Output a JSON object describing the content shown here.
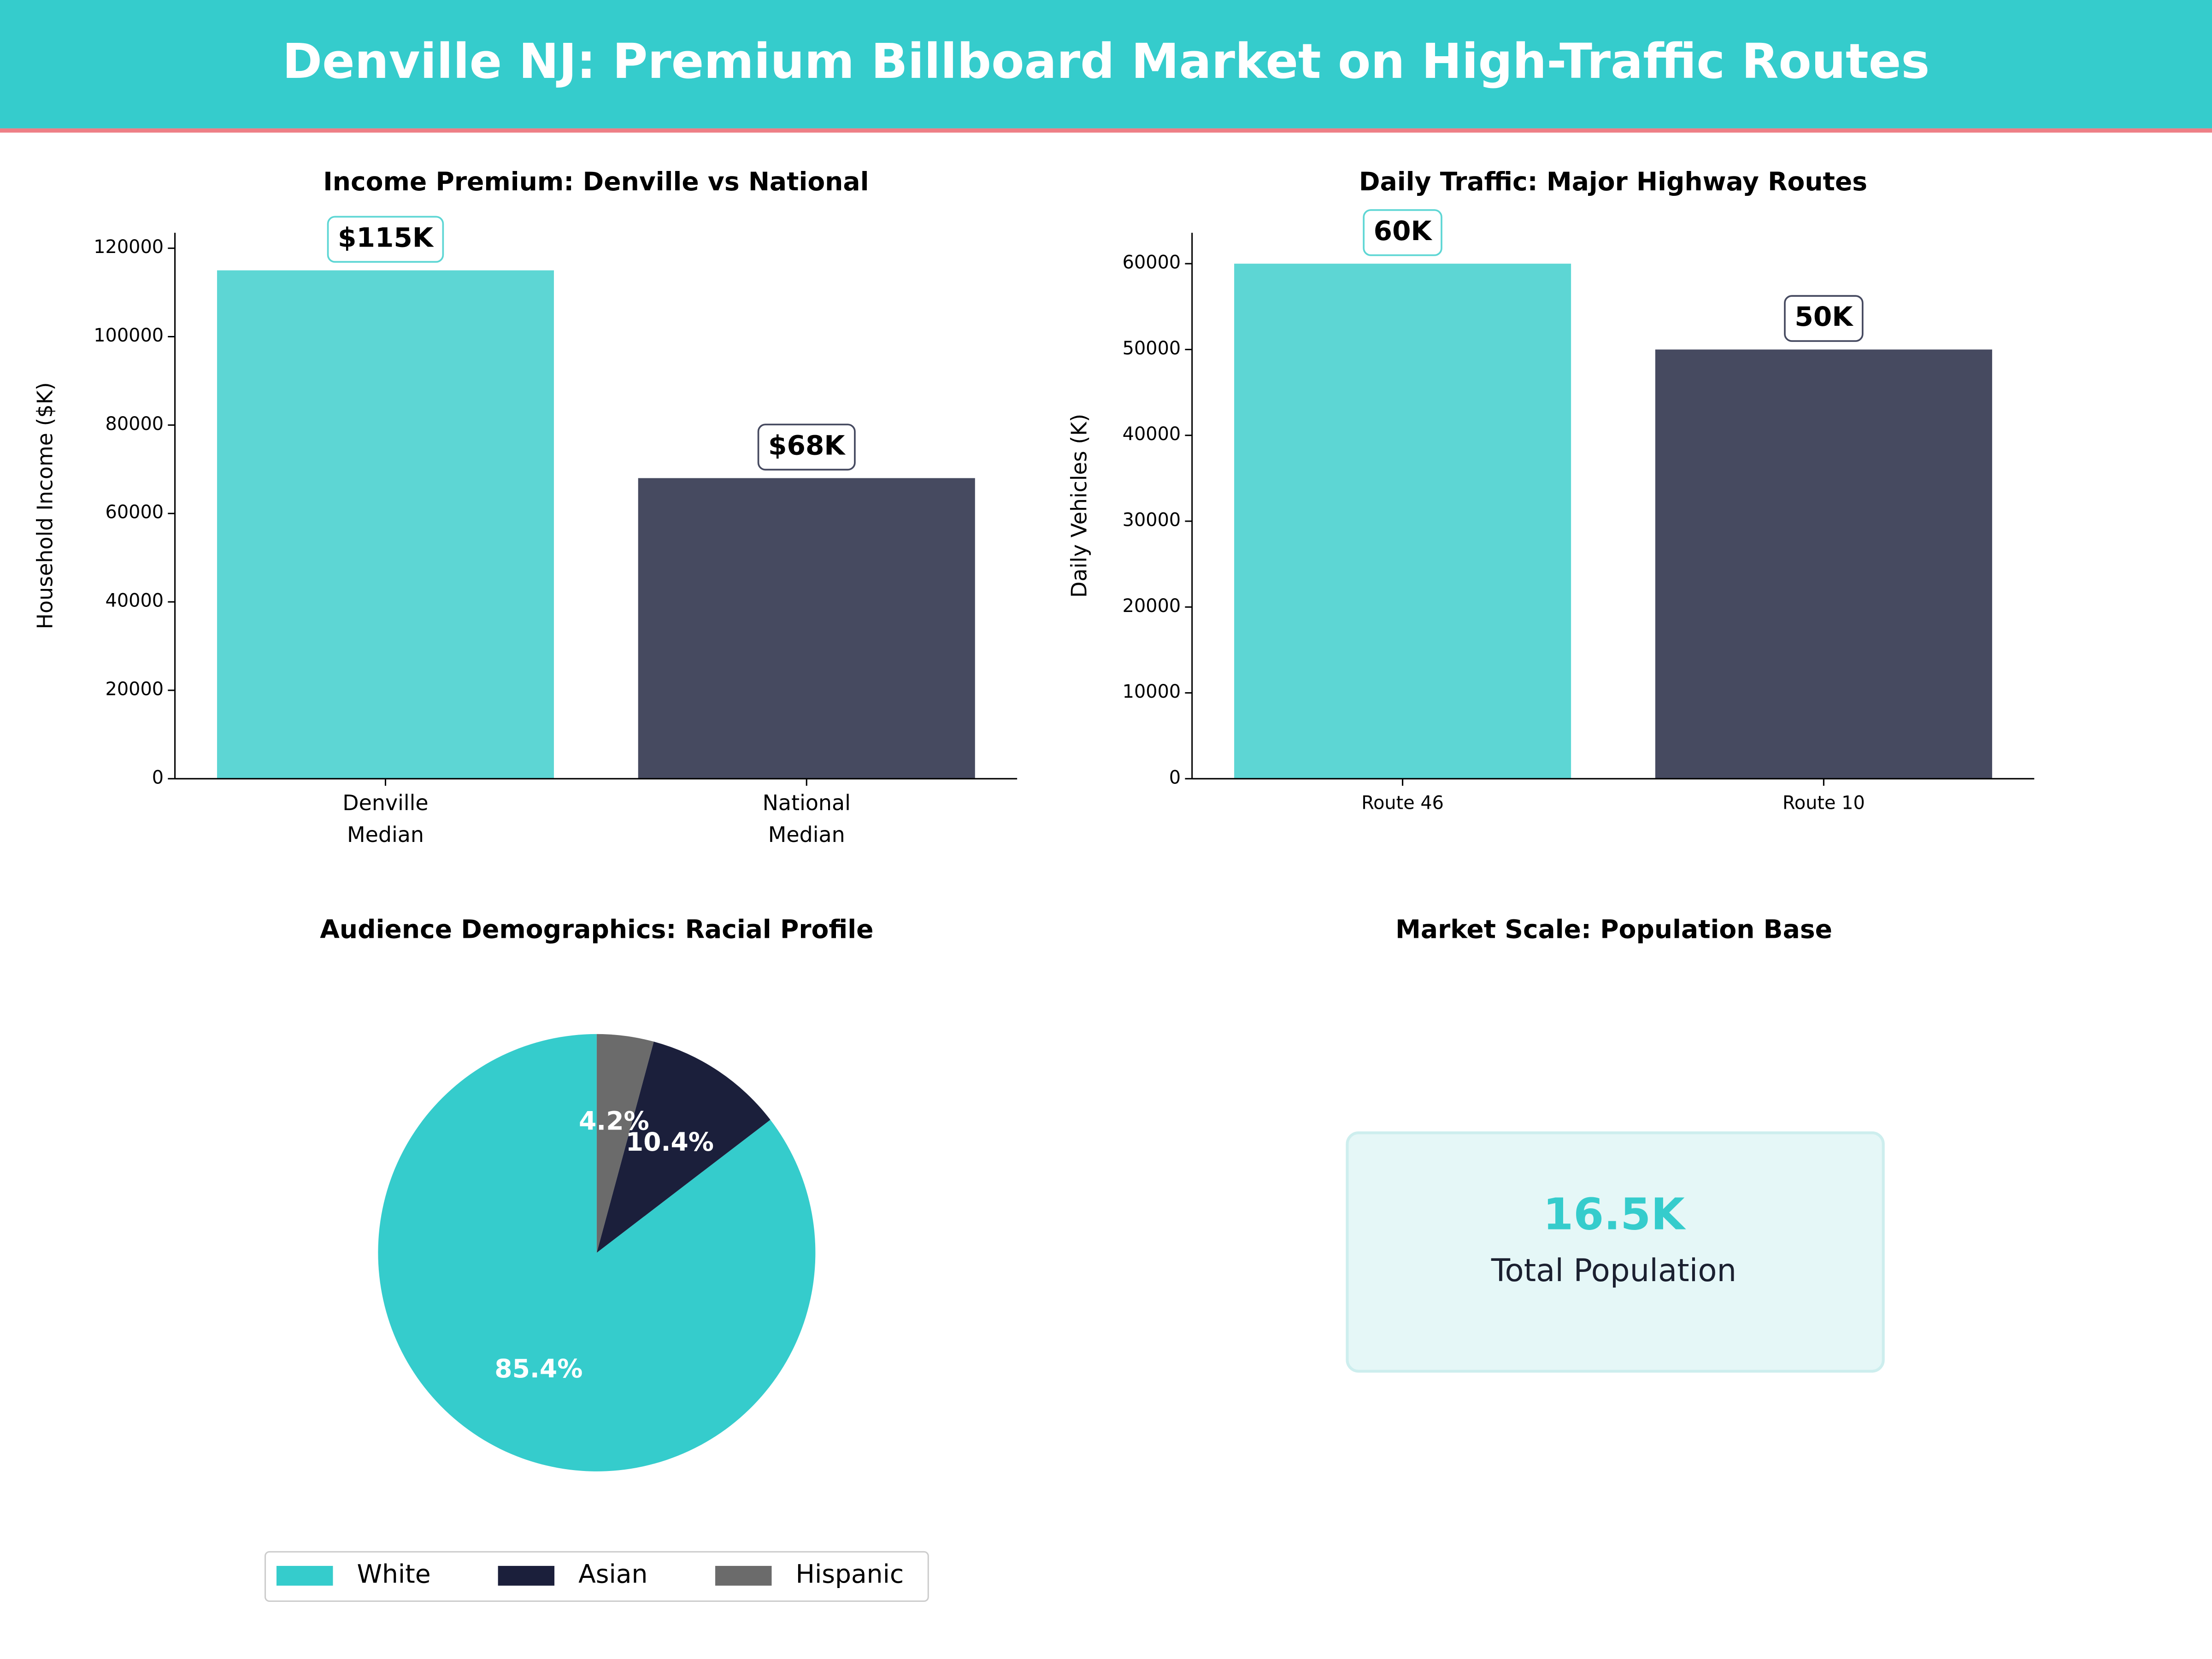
{
  "title": "Denville NJ: Premium Billboard Market on High-Traffic Routes",
  "chart_data": [
    {
      "type": "bar",
      "title": "Income Premium: Denville vs National",
      "ylabel": "Household Income ($K)",
      "categories": [
        "Denville\nMedian",
        "National\nMedian"
      ],
      "values": [
        115000,
        68000
      ],
      "value_labels": [
        "$115K",
        "$68K"
      ],
      "colors": [
        "#5dd6d4",
        "#464a60"
      ],
      "ylim": [
        0,
        123500
      ],
      "yticks": [
        0,
        20000,
        40000,
        60000,
        80000,
        100000,
        120000
      ]
    },
    {
      "type": "bar",
      "title": "Daily Traffic: Major Highway Routes",
      "ylabel": "Daily Vehicles (K)",
      "categories": [
        "Route 46",
        "Route 10"
      ],
      "values": [
        60000,
        50000
      ],
      "value_labels": [
        "60K",
        "50K"
      ],
      "colors": [
        "#5dd6d4",
        "#464a60"
      ],
      "ylim": [
        0,
        63600
      ],
      "yticks": [
        0,
        10000,
        20000,
        30000,
        40000,
        50000,
        60000
      ]
    },
    {
      "type": "pie",
      "title": "Audience Demographics: Racial Profile",
      "categories": [
        "White",
        "Asian",
        "Hispanic"
      ],
      "values": [
        85.4,
        10.4,
        4.2
      ],
      "value_labels": [
        "85.4%",
        "10.4%",
        "4.2%"
      ],
      "colors": [
        "#35cccc",
        "#1b1f3b",
        "#6b6b6b"
      ],
      "legend": "bottom"
    },
    {
      "type": "kpi",
      "title": "Market Scale: Population Base",
      "values": [
        16500
      ],
      "value_labels": [
        "16.5K"
      ],
      "label": "Total Population",
      "color": "#35cccc"
    }
  ]
}
